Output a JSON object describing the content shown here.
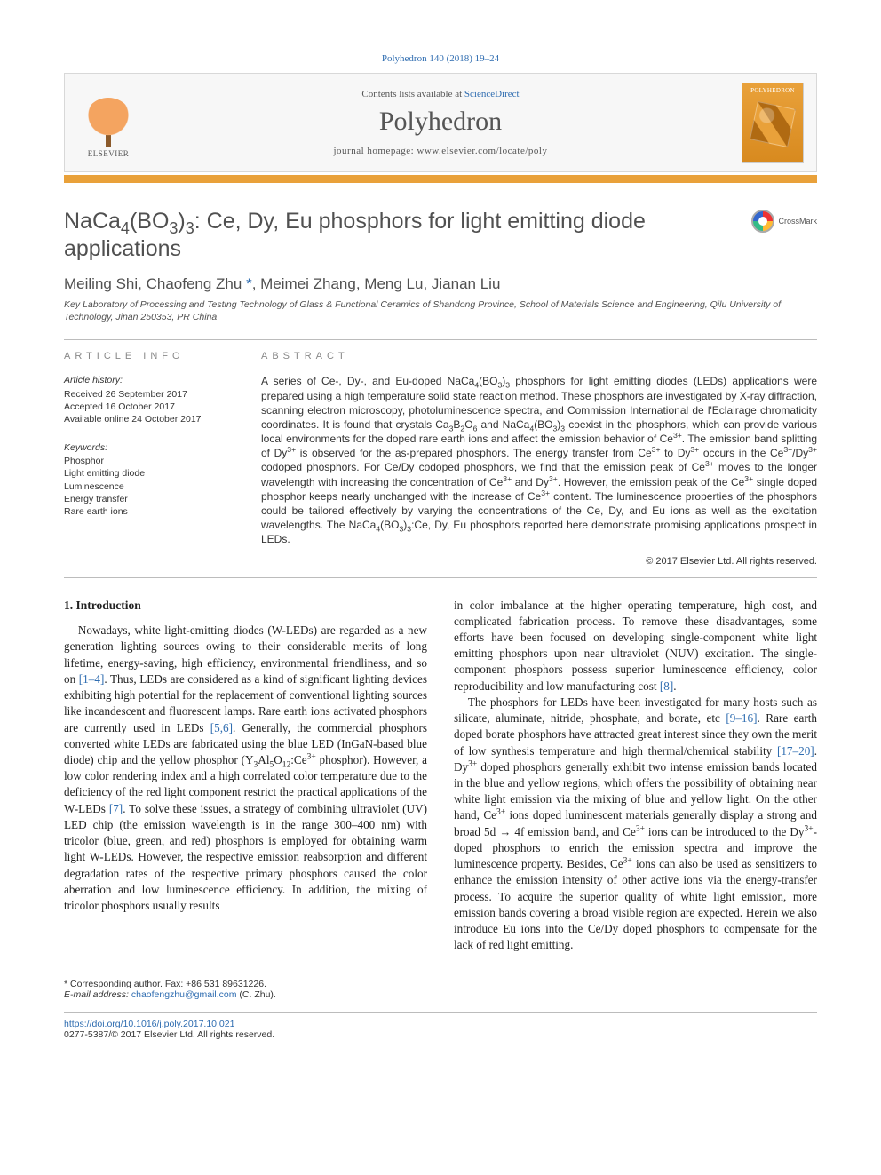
{
  "citation": {
    "journal": "Polyhedron",
    "ref": "140 (2018) 19–24"
  },
  "header": {
    "contents_prefix": "Contents lists available at ",
    "contents_link": "ScienceDirect",
    "journal": "Polyhedron",
    "homepage_prefix": "journal homepage: ",
    "homepage_url": "www.elsevier.com/locate/poly",
    "publisher_word": "ELSEVIER",
    "cover_label": "POLYHEDRON",
    "accent_color": "#e9a13a",
    "link_color": "#2e6cb0"
  },
  "crossmark": {
    "label": "CrossMark"
  },
  "article": {
    "title_html": "NaCa<sub>4</sub>(BO<sub>3</sub>)<sub>3</sub>: Ce, Dy, Eu phosphors for light emitting diode applications",
    "authors_html": "Meiling Shi, Chaofeng Zhu <span class=\"star\">*</span>, Meimei Zhang, Meng Lu, Jianan Liu",
    "affiliation": "Key Laboratory of Processing and Testing Technology of Glass & Functional Ceramics of Shandong Province, School of Materials Science and Engineering, Qilu University of Technology, Jinan 250353, PR China"
  },
  "info": {
    "heading_left": "article info",
    "heading_right": "abstract",
    "history_label": "Article history:",
    "history_lines": [
      "Received 26 September 2017",
      "Accepted 16 October 2017",
      "Available online 24 October 2017"
    ],
    "keywords_label": "Keywords:",
    "keywords": [
      "Phosphor",
      "Light emitting diode",
      "Luminescence",
      "Energy transfer",
      "Rare earth ions"
    ]
  },
  "abstract_html": "A series of Ce-, Dy-, and Eu-doped NaCa<sub>4</sub>(BO<sub>3</sub>)<sub>3</sub> phosphors for light emitting diodes (LEDs) applications were prepared using a high temperature solid state reaction method. These phosphors are investigated by X-ray diffraction, scanning electron microscopy, photoluminescence spectra, and Commission International de l'Eclairage chromaticity coordinates. It is found that crystals Ca<sub>3</sub>B<sub>2</sub>O<sub>6</sub> and NaCa<sub>4</sub>(BO<sub>3</sub>)<sub>3</sub> coexist in the phosphors, which can provide various local environments for the doped rare earth ions and affect the emission behavior of Ce<sup>3+</sup>. The emission band splitting of Dy<sup>3+</sup> is observed for the as-prepared phosphors. The energy transfer from Ce<sup>3+</sup> to Dy<sup>3+</sup> occurs in the Ce<sup>3+</sup>/Dy<sup>3+</sup> codoped phosphors. For Ce/Dy codoped phosphors, we find that the emission peak of Ce<sup>3+</sup> moves to the longer wavelength with increasing the concentration of Ce<sup>3+</sup> and Dy<sup>3+</sup>. However, the emission peak of the Ce<sup>3+</sup> single doped phosphor keeps nearly unchanged with the increase of Ce<sup>3+</sup> content. The luminescence properties of the phosphors could be tailored effectively by varying the concentrations of the Ce, Dy, and Eu ions as well as the excitation wavelengths. The NaCa<sub>4</sub>(BO<sub>3</sub>)<sub>3</sub>:Ce, Dy, Eu phosphors reported here demonstrate promising applications prospect in LEDs.",
  "copyright": "© 2017 Elsevier Ltd. All rights reserved.",
  "section1": {
    "heading": "1. Introduction"
  },
  "body": {
    "col1_p1_html": "Nowadays, white light-emitting diodes (W-LEDs) are regarded as a new generation lighting sources owing to their considerable merits of long lifetime, energy-saving, high efficiency, environmental friendliness, and so on <span class=\"ref\">[1–4]</span>. Thus, LEDs are considered as a kind of significant lighting devices exhibiting high potential for the replacement of conventional lighting sources like incandescent and fluorescent lamps. Rare earth ions activated phosphors are currently used in LEDs <span class=\"ref\">[5,6]</span>. Generally, the commercial phosphors converted white LEDs are fabricated using the blue LED (InGaN-based blue diode) chip and the yellow phosphor (Y<sub>3</sub>Al<sub>5</sub>O<sub>12</sub>:Ce<sup>3+</sup> phosphor). However, a low color rendering index and a high correlated color temperature due to the deficiency of the red light component restrict the practical applications of the W-LEDs <span class=\"ref\">[7]</span>. To solve these issues, a strategy of combining ultraviolet (UV) LED chip (the emission wavelength is in the range 300–400 nm) with tricolor (blue, green, and red) phosphors is employed for obtaining warm light W-LEDs. However, the respective emission reabsorption and different degradation rates of the respective primary phosphors caused the color aberration and low luminescence efficiency. In addition, the mixing of tricolor phosphors usually results",
    "col2_p1_html": "in color imbalance at the higher operating temperature, high cost, and complicated fabrication process. To remove these disadvantages, some efforts have been focused on developing single-component white light emitting phosphors upon near ultraviolet (NUV) excitation. The single-component phosphors possess superior luminescence efficiency, color reproducibility and low manufacturing cost <span class=\"ref\">[8]</span>.",
    "col2_p2_html": "The phosphors for LEDs have been investigated for many hosts such as silicate, aluminate, nitride, phosphate, and borate, etc <span class=\"ref\">[9–16]</span>. Rare earth doped borate phosphors have attracted great interest since they own the merit of low synthesis temperature and high thermal/chemical stability <span class=\"ref\">[17–20]</span>. Dy<sup>3+</sup> doped phosphors generally exhibit two intense emission bands located in the blue and yellow regions, which offers the possibility of obtaining near white light emission via the mixing of blue and yellow light. On the other hand, Ce<sup>3+</sup> ions doped luminescent materials generally display a strong and broad 5d → 4f emission band, and Ce<sup>3+</sup> ions can be introduced to the Dy<sup>3+</sup>-doped phosphors to enrich the emission spectra and improve the luminescence property. Besides, Ce<sup>3+</sup> ions can also be used as sensitizers to enhance the emission intensity of other active ions via the energy-transfer process. To acquire the superior quality of white light emission, more emission bands covering a broad visible region are expected. Herein we also introduce Eu ions into the Ce/Dy doped phosphors to compensate for the lack of red light emitting."
  },
  "footnotes": {
    "corr_label": "* Corresponding author. Fax: ",
    "corr_fax": "+86 531 89631226.",
    "email_label": "E-mail address: ",
    "email": "chaofengzhu@gmail.com",
    "email_suffix": " (C. Zhu)."
  },
  "footer": {
    "doi": "https://doi.org/10.1016/j.poly.2017.10.021",
    "issn_line": "0277-5387/© 2017 Elsevier Ltd. All rights reserved."
  }
}
